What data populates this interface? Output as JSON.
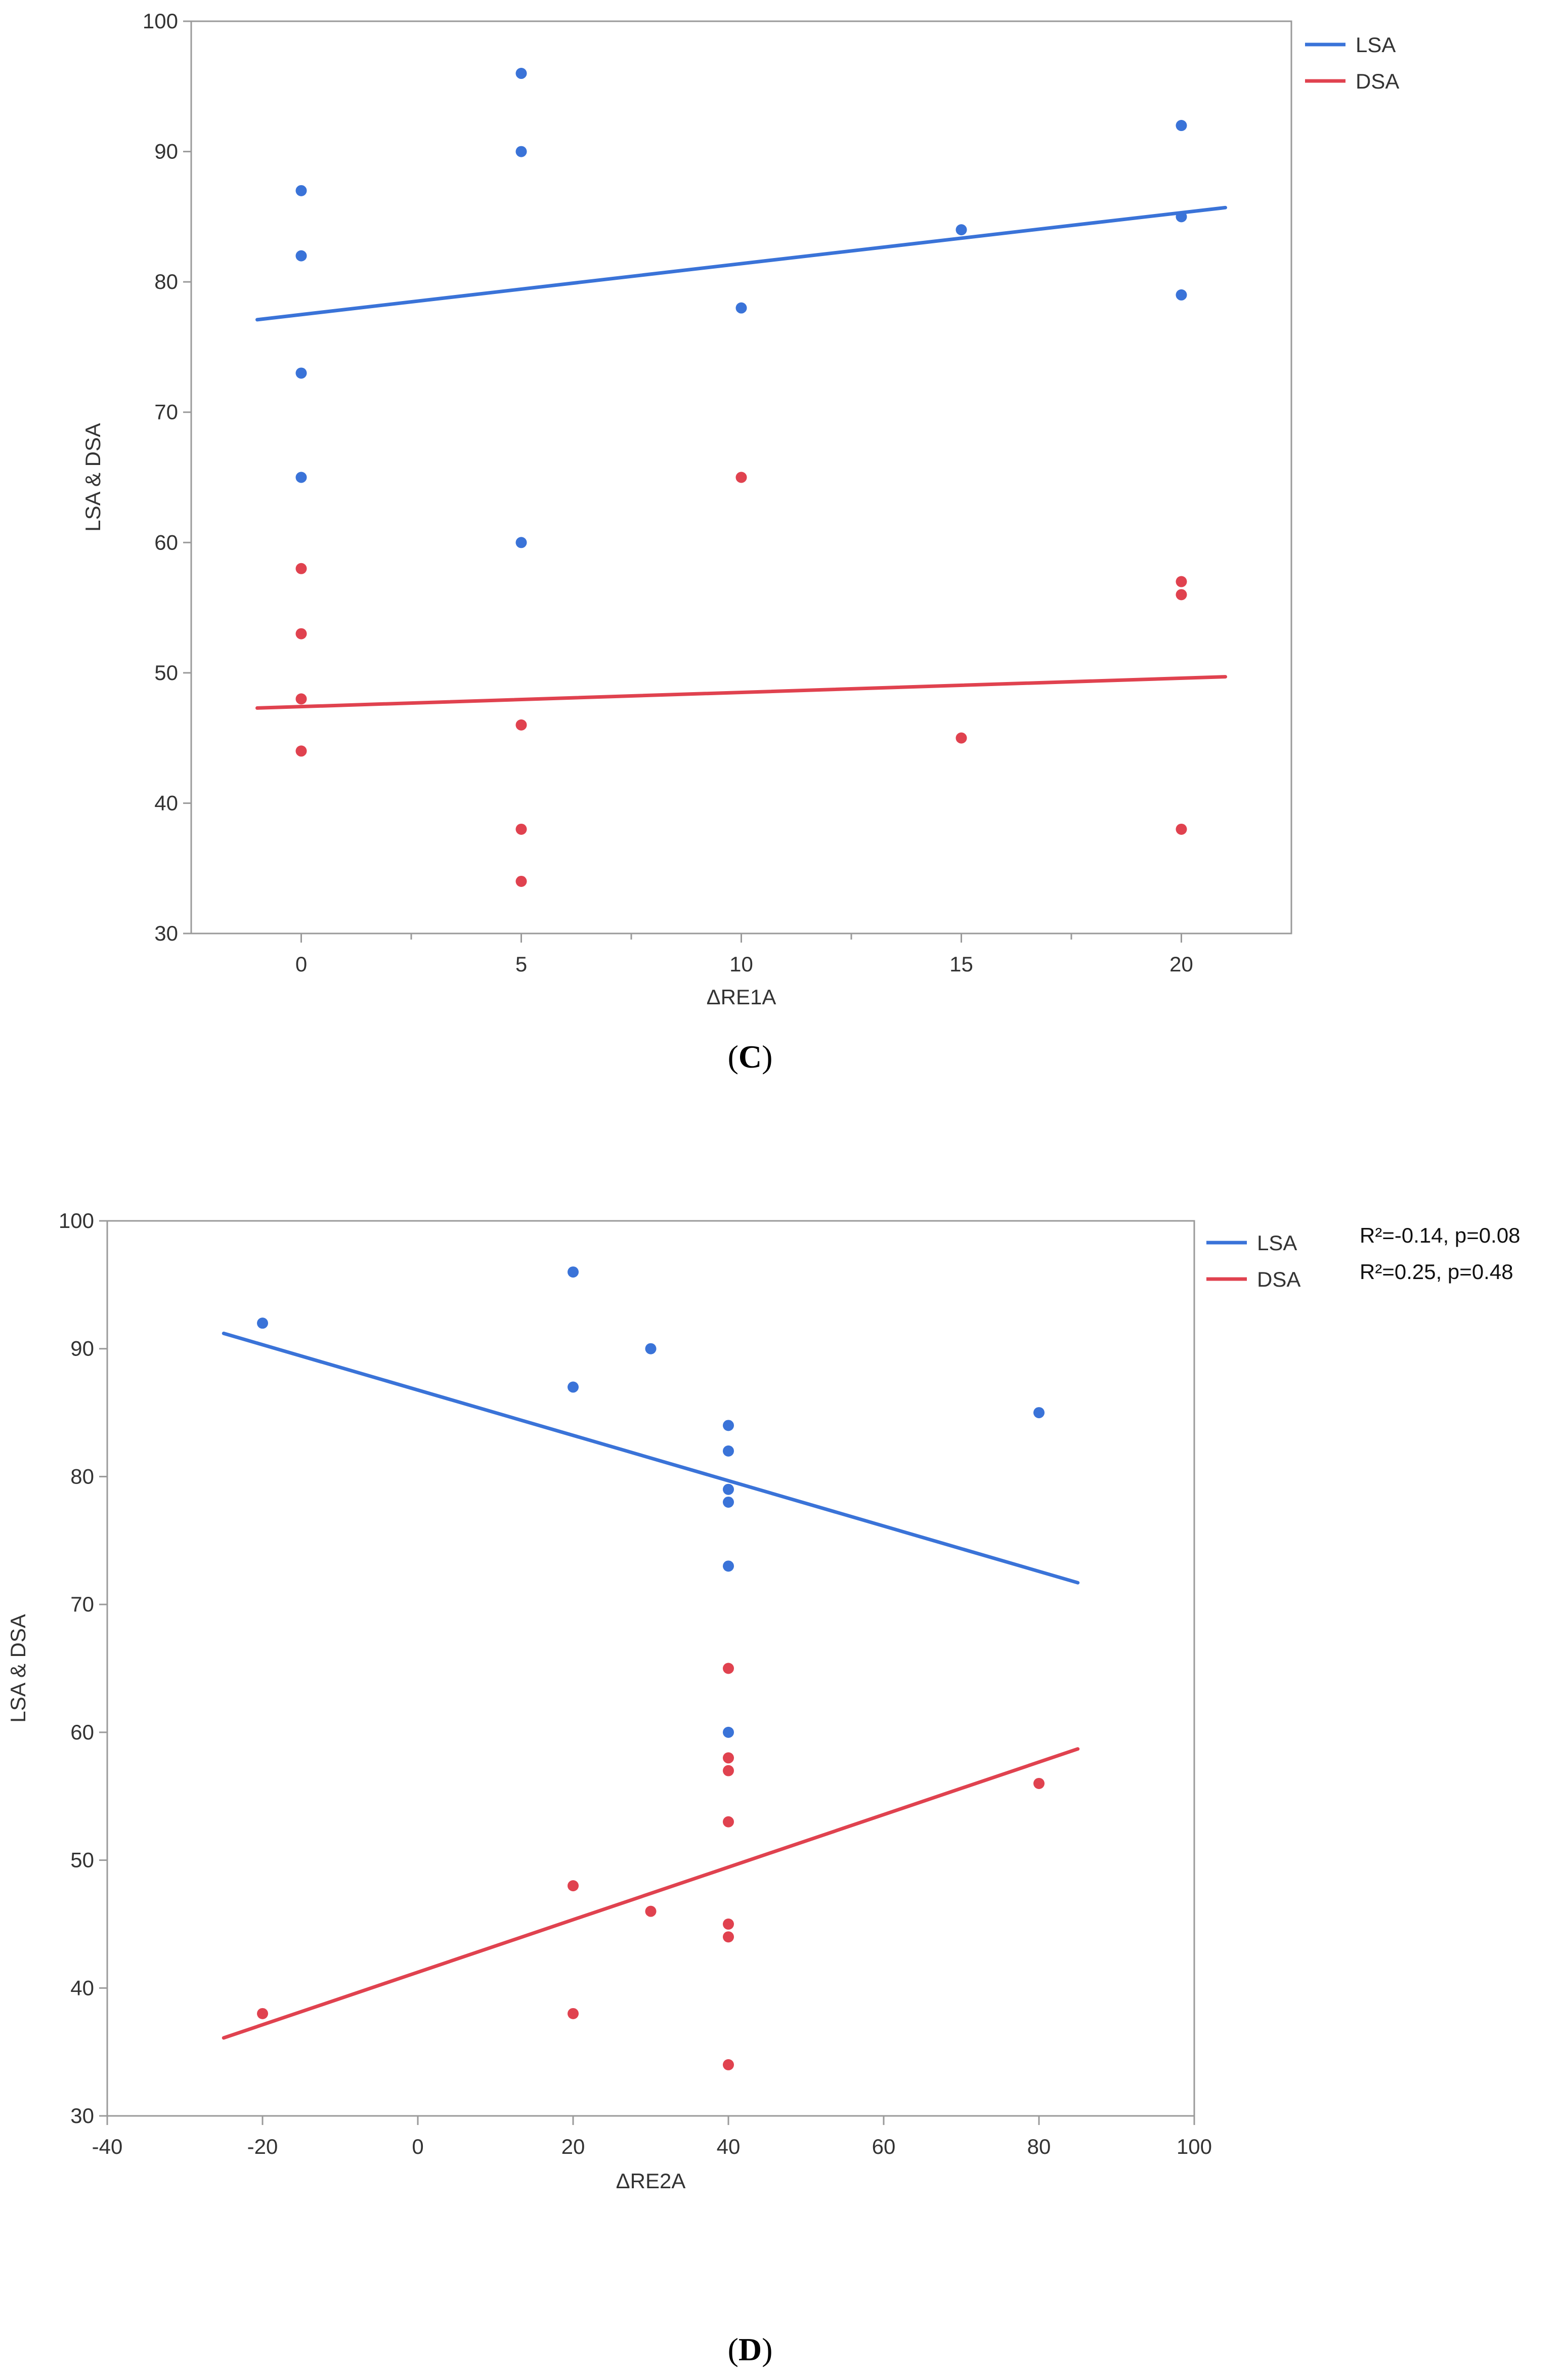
{
  "chart_data": [
    {
      "type": "scatter",
      "panel_caption": "C",
      "title": "",
      "xlabel": "ΔRE1A",
      "ylabel": "LSA & DSA",
      "xlim": [
        -2.5,
        22.5
      ],
      "ylim": [
        30,
        100
      ],
      "xticks": [
        0,
        5,
        10,
        15,
        20
      ],
      "xtick_labels": [
        "0",
        "5",
        "10",
        "15",
        "20"
      ],
      "yticks": [
        30,
        40,
        50,
        60,
        70,
        80,
        90,
        100
      ],
      "ytick_labels": [
        "30",
        "40",
        "50",
        "60",
        "70",
        "80",
        "90",
        "100"
      ],
      "legend_position": "right",
      "annotations": [],
      "series": [
        {
          "name": "LSA",
          "color": "#3a73d8",
          "points": [
            [
              0,
              87
            ],
            [
              0,
              82
            ],
            [
              0,
              73
            ],
            [
              0,
              65
            ],
            [
              5,
              96
            ],
            [
              5,
              90
            ],
            [
              5,
              60
            ],
            [
              10,
              78
            ],
            [
              15,
              84
            ],
            [
              20,
              92
            ],
            [
              20,
              85
            ],
            [
              20,
              79
            ]
          ],
          "fit": [
            [
              -1,
              77.1
            ],
            [
              21,
              85.7
            ]
          ]
        },
        {
          "name": "DSA",
          "color": "#e0424f",
          "points": [
            [
              0,
              58
            ],
            [
              0,
              53
            ],
            [
              0,
              48
            ],
            [
              0,
              44
            ],
            [
              5,
              46
            ],
            [
              5,
              38
            ],
            [
              5,
              34
            ],
            [
              10,
              65
            ],
            [
              15,
              45
            ],
            [
              20,
              57
            ],
            [
              20,
              56
            ],
            [
              20,
              38
            ]
          ],
          "fit": [
            [
              -1,
              47.3
            ],
            [
              21,
              49.7
            ]
          ]
        }
      ]
    },
    {
      "type": "scatter",
      "panel_caption": "D",
      "title": "",
      "xlabel": "ΔRE2A",
      "ylabel": "LSA & DSA",
      "xlim": [
        -40,
        100
      ],
      "ylim": [
        30,
        100
      ],
      "xticks": [
        -40,
        -20,
        0,
        20,
        40,
        60,
        80,
        100
      ],
      "xtick_labels": [
        "-40",
        "-20",
        "0",
        "20",
        "40",
        "60",
        "80",
        "100"
      ],
      "yticks": [
        30,
        40,
        50,
        60,
        70,
        80,
        90,
        100
      ],
      "ytick_labels": [
        "30",
        "40",
        "50",
        "60",
        "70",
        "80",
        "90",
        "100"
      ],
      "legend_position": "right",
      "annotations": [
        "R²=-0.14, p=0.08",
        "R²=0.25, p=0.48"
      ],
      "series": [
        {
          "name": "LSA",
          "color": "#3a73d8",
          "points": [
            [
              -20,
              92
            ],
            [
              20,
              96
            ],
            [
              20,
              87
            ],
            [
              30,
              90
            ],
            [
              40,
              84
            ],
            [
              40,
              82
            ],
            [
              40,
              79
            ],
            [
              40,
              78
            ],
            [
              40,
              73
            ],
            [
              40,
              60
            ],
            [
              80,
              85
            ]
          ],
          "fit": [
            [
              -25,
              91.2
            ],
            [
              85,
              71.7
            ]
          ]
        },
        {
          "name": "DSA",
          "color": "#e0424f",
          "points": [
            [
              -20,
              38
            ],
            [
              20,
              48
            ],
            [
              20,
              38
            ],
            [
              30,
              46
            ],
            [
              40,
              65
            ],
            [
              40,
              58
            ],
            [
              40,
              57
            ],
            [
              40,
              53
            ],
            [
              40,
              45
            ],
            [
              40,
              44
            ],
            [
              40,
              34
            ],
            [
              80,
              56
            ]
          ],
          "fit": [
            [
              -25,
              36.1
            ],
            [
              85,
              58.7
            ]
          ]
        }
      ]
    }
  ],
  "captions": {
    "c": {
      "open": "(",
      "letter": "C",
      "close": ")"
    },
    "d": {
      "open": "(",
      "letter": "D",
      "close": ")"
    }
  }
}
